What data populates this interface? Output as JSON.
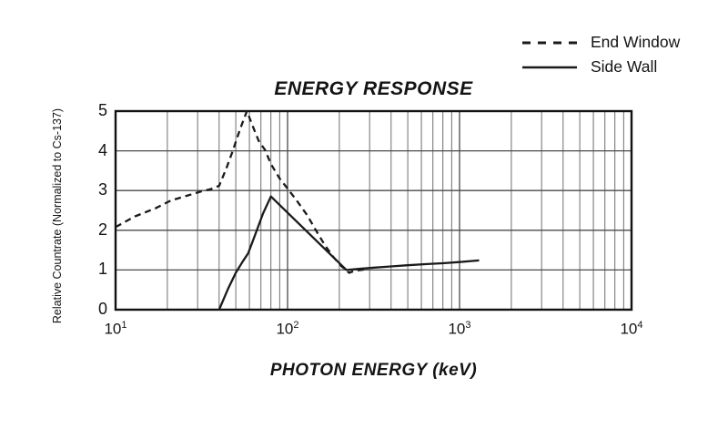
{
  "chart_data": {
    "type": "line",
    "title": "ENERGY RESPONSE",
    "xlabel": "PHOTON ENERGY (keV)",
    "ylabel": "Relative Countrate (Normalized to Cs-137)",
    "x_scale": "log",
    "xlim": [
      10,
      10000
    ],
    "ylim": [
      0,
      5
    ],
    "grid": true,
    "legend_position": "top-right",
    "x_ticks": [
      {
        "base": "10",
        "exp": "1",
        "value": 10
      },
      {
        "base": "10",
        "exp": "2",
        "value": 100
      },
      {
        "base": "10",
        "exp": "3",
        "value": 1000
      },
      {
        "base": "10",
        "exp": "4",
        "value": 10000
      }
    ],
    "y_ticks": [
      0,
      1,
      2,
      3,
      4,
      5
    ],
    "colors": {
      "line": "#1a1a1a",
      "grid_major": "#4a4a4a",
      "grid_minor": "#6e6e6e",
      "border": "#111111"
    },
    "series": [
      {
        "name": "End Window",
        "style": "dashed",
        "points": [
          [
            10,
            2.08
          ],
          [
            13,
            2.35
          ],
          [
            17,
            2.55
          ],
          [
            21,
            2.75
          ],
          [
            26,
            2.87
          ],
          [
            31,
            2.97
          ],
          [
            36,
            3.04
          ],
          [
            40,
            3.12
          ],
          [
            44,
            3.55
          ],
          [
            48,
            4.0
          ],
          [
            53,
            4.55
          ],
          [
            58,
            5.0
          ],
          [
            63,
            4.6
          ],
          [
            68,
            4.25
          ],
          [
            74,
            4.02
          ],
          [
            80,
            3.67
          ],
          [
            90,
            3.3
          ],
          [
            100,
            3.05
          ],
          [
            113,
            2.75
          ],
          [
            130,
            2.38
          ],
          [
            146,
            2.0
          ],
          [
            165,
            1.62
          ],
          [
            185,
            1.32
          ],
          [
            205,
            1.1
          ],
          [
            228,
            0.93
          ],
          [
            245,
            0.98
          ],
          [
            290,
            1.02
          ]
        ]
      },
      {
        "name": "Side Wall",
        "style": "solid",
        "points": [
          [
            40,
            0
          ],
          [
            45,
            0.52
          ],
          [
            50,
            0.93
          ],
          [
            55,
            1.22
          ],
          [
            59,
            1.42
          ],
          [
            65,
            1.9
          ],
          [
            72,
            2.42
          ],
          [
            80,
            2.85
          ],
          [
            220,
            1.0
          ],
          [
            260,
            1.03
          ],
          [
            320,
            1.06
          ],
          [
            400,
            1.09
          ],
          [
            500,
            1.12
          ],
          [
            650,
            1.15
          ],
          [
            800,
            1.17
          ],
          [
            1000,
            1.2
          ],
          [
            1300,
            1.24
          ]
        ]
      }
    ]
  }
}
